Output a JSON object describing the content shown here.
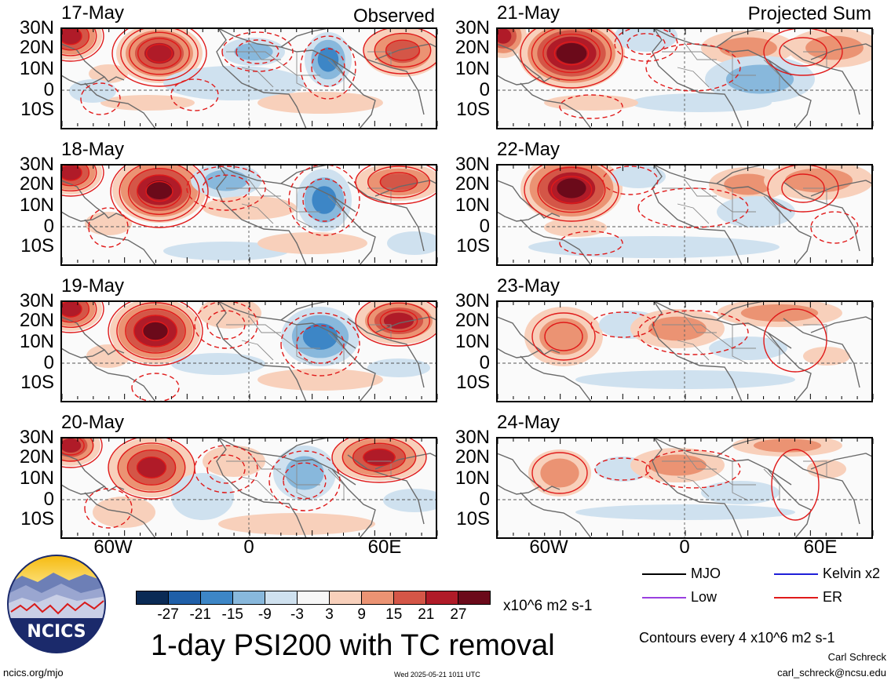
{
  "headers": {
    "left": "Observed",
    "right": "Projected Sum"
  },
  "latitudes": [
    "30N",
    "20N",
    "10N",
    "0",
    "10S"
  ],
  "longitudes": [
    "60W",
    "0",
    "60E"
  ],
  "panels": [
    {
      "date": "17-May",
      "column": "observed",
      "row": 0
    },
    {
      "date": "18-May",
      "column": "observed",
      "row": 1
    },
    {
      "date": "19-May",
      "column": "observed",
      "row": 2
    },
    {
      "date": "20-May",
      "column": "observed",
      "row": 3
    },
    {
      "date": "21-May",
      "column": "projected",
      "row": 0
    },
    {
      "date": "22-May",
      "column": "projected",
      "row": 1
    },
    {
      "date": "23-May",
      "column": "projected",
      "row": 2
    },
    {
      "date": "24-May",
      "column": "projected",
      "row": 3
    }
  ],
  "colorbar": {
    "labels": [
      "-27",
      "-21",
      "-15",
      "-9",
      "-3",
      "3",
      "9",
      "15",
      "21",
      "27"
    ],
    "colors": [
      "#0a2a55",
      "#1f5fa8",
      "#3d86c6",
      "#88b8dc",
      "#cfe1ef",
      "#f7f7f7",
      "#f8d0bb",
      "#eb9373",
      "#d45647",
      "#b01b28",
      "#6b0a1a"
    ],
    "units": "x10^6 m2 s-1"
  },
  "legend": [
    {
      "label": "MJO",
      "color": "#000000"
    },
    {
      "label": "Kelvin x2",
      "color": "#1f1fd8"
    },
    {
      "label": "Low",
      "color": "#9a3fe0"
    },
    {
      "label": "ER",
      "color": "#e01a1a"
    }
  ],
  "contour_note": "Contours every 4 x10^6 m2 s-1",
  "title": "1-day PSI200 with TC removal",
  "logo_text": "NCICS",
  "footer": {
    "url": "ncics.org/mjo",
    "timestamp": "Wed 2025-05-21 1011 UTC",
    "author": "Carl Schreck",
    "email": "carl_schreck@ncsu.edu"
  }
}
